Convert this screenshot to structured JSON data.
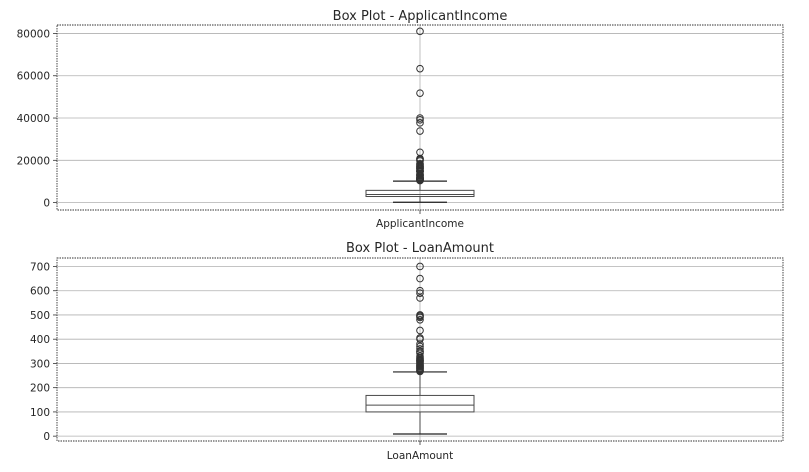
{
  "chart_data": [
    {
      "type": "box",
      "title": "Box Plot - ApplicantIncome",
      "xlabel": "",
      "ylabel": "",
      "categories": [
        "ApplicantIncome"
      ],
      "ylim": [
        -3500,
        84000
      ],
      "yticks": [
        0,
        20000,
        40000,
        60000,
        80000
      ],
      "ytick_labels": [
        "0",
        "20000",
        "40000",
        "60000",
        "80000"
      ],
      "grid": true,
      "stats": {
        "min": 150,
        "q1": 2878,
        "median": 3812,
        "q3": 5795,
        "max": 10171
      },
      "fliers": [
        81000,
        63337,
        51763,
        39999,
        39147,
        37719,
        33846,
        23803,
        20833,
        20667,
        20233,
        19730,
        18333,
        18165,
        17500,
        17263,
        16692,
        16666,
        16250,
        16120,
        15759,
        15000,
        14999,
        14880,
        14866,
        14583,
        13650,
        13262,
        12876,
        12841,
        12500,
        12000,
        11757,
        11500,
        11417,
        11250,
        11146,
        11000,
        10833,
        10750,
        10513,
        10408
      ]
    },
    {
      "type": "box",
      "title": "Box Plot - LoanAmount",
      "xlabel": "",
      "ylabel": "",
      "categories": [
        "LoanAmount"
      ],
      "ylim": [
        -20,
        735
      ],
      "yticks": [
        0,
        100,
        200,
        300,
        400,
        500,
        600,
        700
      ],
      "ytick_labels": [
        "0",
        "100",
        "200",
        "300",
        "400",
        "500",
        "600",
        "700"
      ],
      "grid": true,
      "stats": {
        "min": 9,
        "q1": 100,
        "median": 128,
        "q3": 168,
        "max": 265
      },
      "fliers": [
        700,
        650,
        600,
        590,
        570,
        500,
        496,
        495,
        490,
        480,
        436,
        405,
        400,
        380,
        370,
        360,
        350,
        349,
        342,
        330,
        324,
        320,
        315,
        312,
        311,
        308,
        304,
        300,
        296,
        292,
        290,
        286,
        285,
        280,
        279,
        275,
        272,
        270,
        267
      ]
    }
  ]
}
